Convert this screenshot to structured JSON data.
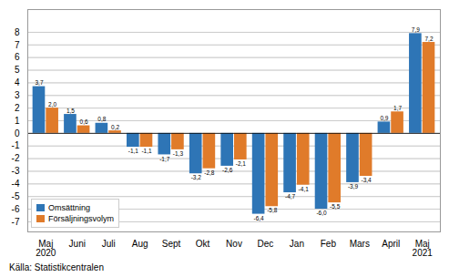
{
  "chart_data": {
    "type": "bar",
    "categories": [
      "Maj\n2020",
      "Juni",
      "Juli",
      "Aug",
      "Sept",
      "Okt",
      "Nov",
      "Dec",
      "Jan",
      "Feb",
      "Mars",
      "April",
      "Maj\n2021"
    ],
    "series": [
      {
        "name": "Omsättning",
        "color": "#2E75B6",
        "values": [
          3.7,
          1.5,
          0.8,
          -1.1,
          -1.7,
          -3.2,
          -2.6,
          -6.4,
          -4.7,
          -6.0,
          -3.9,
          0.9,
          7.9
        ],
        "value_labels": [
          "3,7",
          "1,5",
          "0,8",
          "-1,1",
          "-1,7",
          "-3,2",
          "-2,6",
          "-6,4",
          "-4,7",
          "-6,0",
          "-3,9",
          "0,9",
          "7,9"
        ]
      },
      {
        "name": "Försäljningsvolym",
        "color": "#E07B2A",
        "values": [
          2.0,
          0.6,
          0.2,
          -1.1,
          -1.3,
          -2.8,
          -2.1,
          -5.8,
          -4.1,
          -5.5,
          -3.4,
          1.7,
          7.2
        ],
        "value_labels": [
          "2,0",
          "0,6",
          "0,2",
          "-1,1",
          "-1,3",
          "-2,8",
          "-2,1",
          "-5,8",
          "-4,1",
          "-5,5",
          "-3,4",
          "1,7",
          "7,2"
        ]
      }
    ],
    "ylim": [
      -7.8,
      9.8
    ],
    "yticks": [
      -7,
      -6,
      -5,
      -4,
      -3,
      -2,
      -1,
      0,
      1,
      2,
      3,
      4,
      5,
      6,
      7,
      8
    ],
    "grid": true,
    "legend": "lower left",
    "data_labels": true,
    "source": "Källa: Statistikcentralen"
  }
}
